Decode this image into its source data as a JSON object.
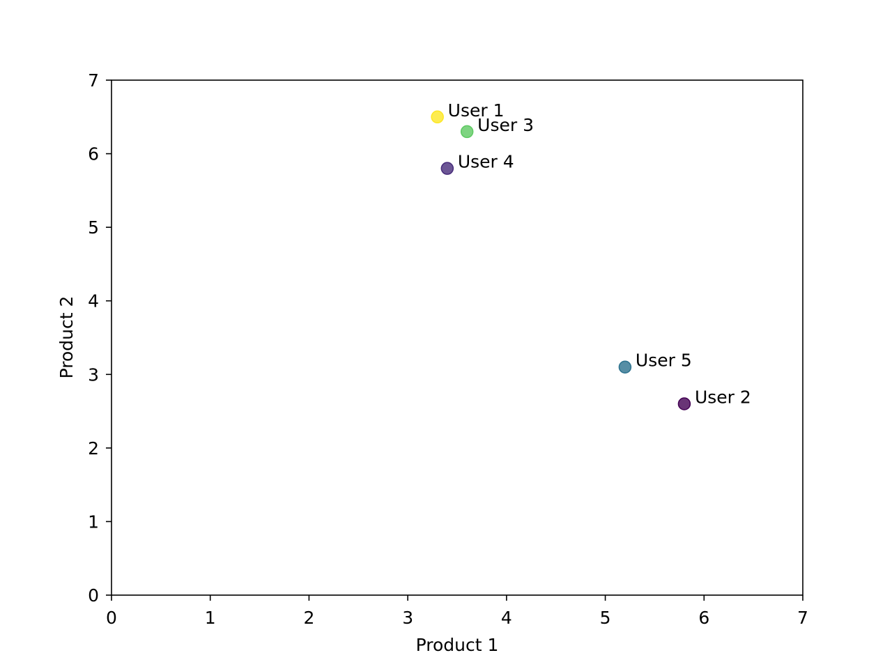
{
  "chart_data": {
    "type": "scatter",
    "title": "",
    "xlabel": "Product 1",
    "ylabel": "Product 2",
    "xlim": [
      0,
      7
    ],
    "ylim": [
      0,
      7
    ],
    "xticks": [
      "0",
      "1",
      "2",
      "3",
      "4",
      "5",
      "6",
      "7"
    ],
    "yticks": [
      "0",
      "1",
      "2",
      "3",
      "4",
      "5",
      "6",
      "7"
    ],
    "grid": false,
    "points": [
      {
        "label": "User 1",
        "x": 3.3,
        "y": 6.5,
        "color": "#fde725"
      },
      {
        "label": "User 2",
        "x": 5.8,
        "y": 2.6,
        "color": "#440154"
      },
      {
        "label": "User 3",
        "x": 3.6,
        "y": 6.3,
        "color": "#5ec962"
      },
      {
        "label": "User 4",
        "x": 3.4,
        "y": 5.8,
        "color": "#472c7a"
      },
      {
        "label": "User 5",
        "x": 5.2,
        "y": 3.1,
        "color": "#2c728e"
      }
    ]
  }
}
